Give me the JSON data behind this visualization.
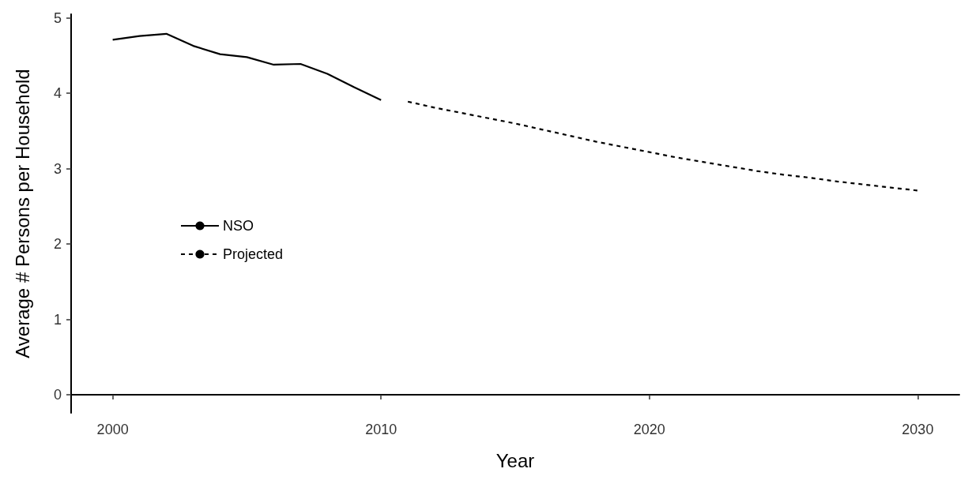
{
  "chart_data": {
    "type": "line",
    "xlabel": "Year",
    "ylabel": "Average # Persons per Household",
    "xlim": [
      1998.45,
      2031.55
    ],
    "xticks": [
      2000,
      2010,
      2020,
      2030
    ],
    "ylim": [
      -0.24,
      5.05
    ],
    "yticks": [
      0,
      1,
      2,
      3,
      4,
      5
    ],
    "grid": false,
    "legend": "left",
    "marker": "none",
    "series": [
      {
        "name": "NSO",
        "color": "#000000",
        "line_style": "solid",
        "x": [
          2000,
          2001,
          2002,
          2003,
          2004,
          2005,
          2006,
          2007,
          2008,
          2009,
          2010
        ],
        "values": [
          4.71,
          4.76,
          4.79,
          4.63,
          4.52,
          4.48,
          4.38,
          4.39,
          4.26,
          4.08,
          3.91
        ]
      },
      {
        "name": "Projected",
        "color": "#000000",
        "line_style": "dotted",
        "x": [
          2011,
          2012,
          2013,
          2014,
          2015,
          2016,
          2017,
          2018,
          2019,
          2020,
          2021,
          2022,
          2023,
          2024,
          2025,
          2026,
          2027,
          2028,
          2029,
          2030
        ],
        "values": [
          3.89,
          3.81,
          3.74,
          3.67,
          3.6,
          3.52,
          3.44,
          3.36,
          3.29,
          3.22,
          3.15,
          3.09,
          3.03,
          2.97,
          2.92,
          2.88,
          2.83,
          2.79,
          2.75,
          2.71
        ]
      }
    ]
  }
}
